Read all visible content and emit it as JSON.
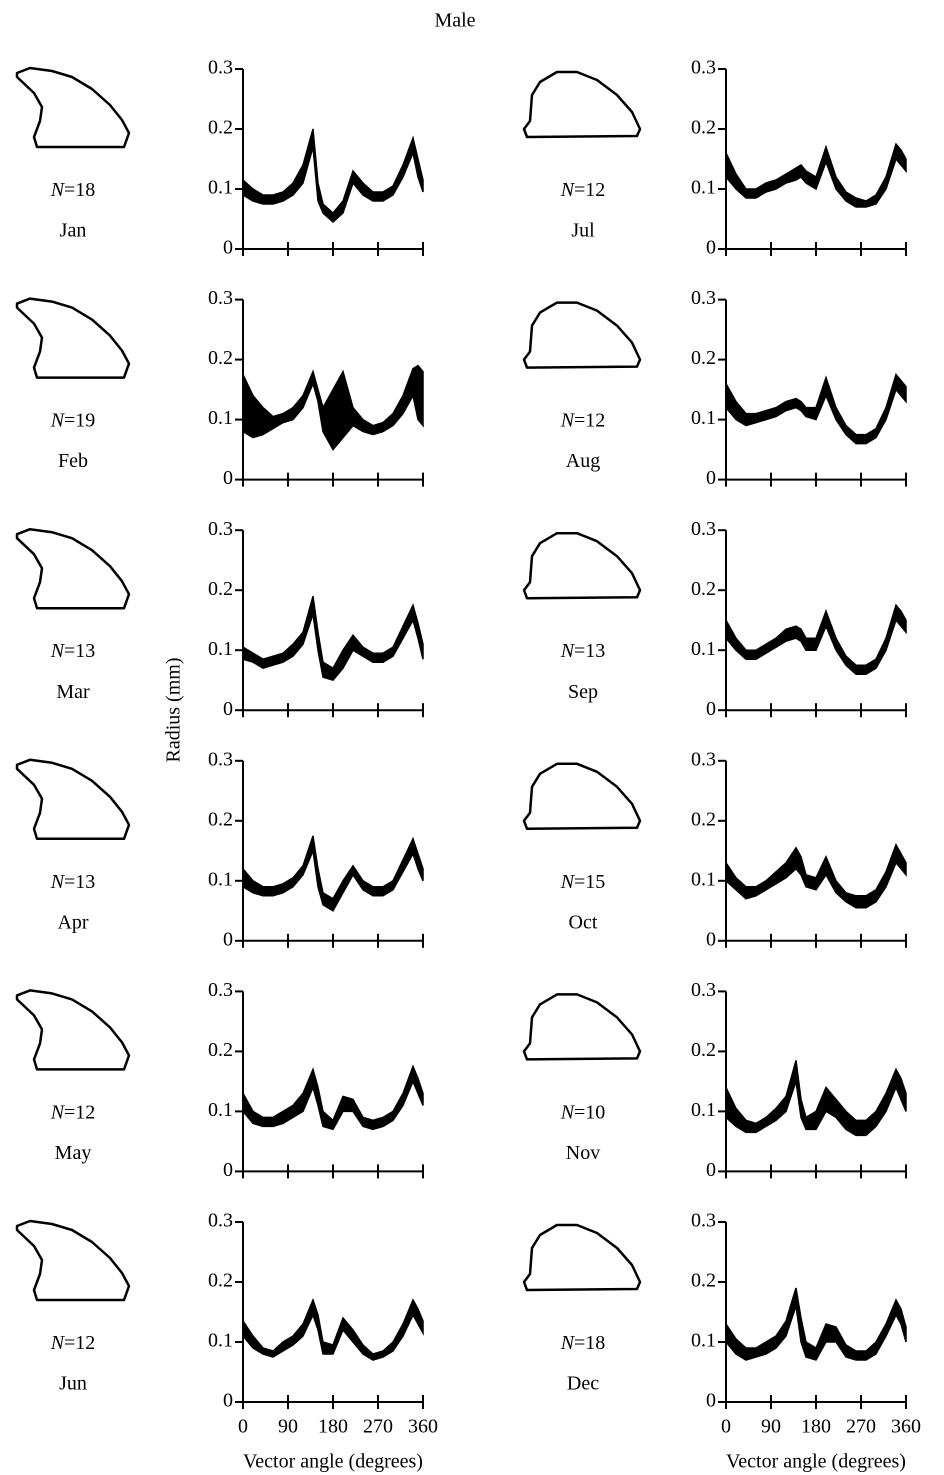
{
  "title": "Male",
  "ylabel": "Radius (mm)",
  "chart_data": [
    {
      "type": "band",
      "month": "Jan",
      "sample": "N=18",
      "color": "#000000",
      "xlim": [
        0,
        360
      ],
      "ylim": [
        0,
        0.3
      ],
      "xticks": [
        0,
        90,
        180,
        270,
        360
      ],
      "yticks": [
        0,
        0.1,
        0.2,
        0.3
      ],
      "show_xtick_labels": false,
      "x": [
        0,
        20,
        40,
        60,
        80,
        100,
        120,
        140,
        150,
        160,
        180,
        200,
        220,
        240,
        260,
        280,
        300,
        320,
        340,
        350,
        360
      ],
      "lower": [
        0.09,
        0.08,
        0.075,
        0.075,
        0.08,
        0.09,
        0.11,
        0.17,
        0.08,
        0.06,
        0.045,
        0.06,
        0.11,
        0.09,
        0.08,
        0.08,
        0.09,
        0.12,
        0.16,
        0.12,
        0.095
      ],
      "upper": [
        0.115,
        0.1,
        0.09,
        0.09,
        0.095,
        0.11,
        0.14,
        0.2,
        0.11,
        0.075,
        0.06,
        0.08,
        0.13,
        0.11,
        0.095,
        0.095,
        0.105,
        0.14,
        0.185,
        0.15,
        0.115
      ]
    },
    {
      "type": "band",
      "month": "Feb",
      "sample": "N=19",
      "color": "#000000",
      "xlim": [
        0,
        360
      ],
      "ylim": [
        0,
        0.3
      ],
      "xticks": [
        0,
        90,
        180,
        270,
        360
      ],
      "yticks": [
        0,
        0.1,
        0.2,
        0.3
      ],
      "show_xtick_labels": false,
      "x": [
        0,
        20,
        40,
        60,
        80,
        100,
        120,
        140,
        150,
        160,
        180,
        200,
        220,
        240,
        260,
        280,
        300,
        320,
        340,
        350,
        360
      ],
      "lower": [
        0.08,
        0.07,
        0.075,
        0.085,
        0.095,
        0.1,
        0.12,
        0.16,
        0.13,
        0.08,
        0.05,
        0.07,
        0.09,
        0.08,
        0.075,
        0.08,
        0.09,
        0.11,
        0.14,
        0.1,
        0.09
      ],
      "upper": [
        0.175,
        0.14,
        0.12,
        0.105,
        0.11,
        0.12,
        0.14,
        0.18,
        0.15,
        0.12,
        0.15,
        0.18,
        0.12,
        0.1,
        0.09,
        0.095,
        0.11,
        0.14,
        0.185,
        0.19,
        0.18
      ]
    },
    {
      "type": "band",
      "month": "Mar",
      "sample": "N=13",
      "color": "#000000",
      "xlim": [
        0,
        360
      ],
      "ylim": [
        0,
        0.3
      ],
      "xticks": [
        0,
        90,
        180,
        270,
        360
      ],
      "yticks": [
        0,
        0.1,
        0.2,
        0.3
      ],
      "show_xtick_labels": false,
      "x": [
        0,
        20,
        40,
        60,
        80,
        100,
        120,
        140,
        150,
        160,
        180,
        200,
        220,
        240,
        260,
        280,
        300,
        320,
        340,
        350,
        360
      ],
      "lower": [
        0.085,
        0.08,
        0.07,
        0.075,
        0.08,
        0.09,
        0.11,
        0.16,
        0.1,
        0.055,
        0.05,
        0.07,
        0.1,
        0.09,
        0.08,
        0.08,
        0.09,
        0.12,
        0.15,
        0.12,
        0.085
      ],
      "upper": [
        0.105,
        0.095,
        0.085,
        0.09,
        0.095,
        0.11,
        0.13,
        0.19,
        0.13,
        0.08,
        0.07,
        0.1,
        0.125,
        0.105,
        0.095,
        0.095,
        0.105,
        0.14,
        0.175,
        0.145,
        0.11
      ]
    },
    {
      "type": "band",
      "month": "Apr",
      "sample": "N=13",
      "color": "#000000",
      "xlim": [
        0,
        360
      ],
      "ylim": [
        0,
        0.3
      ],
      "xticks": [
        0,
        90,
        180,
        270,
        360
      ],
      "yticks": [
        0,
        0.1,
        0.2,
        0.3
      ],
      "show_xtick_labels": false,
      "x": [
        0,
        20,
        40,
        60,
        80,
        100,
        120,
        140,
        150,
        160,
        180,
        200,
        220,
        240,
        260,
        280,
        300,
        320,
        340,
        350,
        360
      ],
      "lower": [
        0.09,
        0.08,
        0.075,
        0.075,
        0.08,
        0.09,
        0.11,
        0.15,
        0.09,
        0.06,
        0.05,
        0.08,
        0.11,
        0.085,
        0.075,
        0.075,
        0.085,
        0.115,
        0.145,
        0.12,
        0.1
      ],
      "upper": [
        0.12,
        0.1,
        0.09,
        0.09,
        0.095,
        0.105,
        0.125,
        0.175,
        0.12,
        0.08,
        0.07,
        0.1,
        0.125,
        0.1,
        0.09,
        0.09,
        0.1,
        0.135,
        0.17,
        0.145,
        0.12
      ]
    },
    {
      "type": "band",
      "month": "May",
      "sample": "N=12",
      "color": "#000000",
      "xlim": [
        0,
        360
      ],
      "ylim": [
        0,
        0.3
      ],
      "xticks": [
        0,
        90,
        180,
        270,
        360
      ],
      "yticks": [
        0,
        0.1,
        0.2,
        0.3
      ],
      "show_xtick_labels": false,
      "x": [
        0,
        20,
        40,
        60,
        80,
        100,
        120,
        140,
        150,
        160,
        180,
        200,
        220,
        240,
        260,
        280,
        300,
        320,
        340,
        350,
        360
      ],
      "lower": [
        0.1,
        0.08,
        0.075,
        0.075,
        0.08,
        0.09,
        0.1,
        0.14,
        0.11,
        0.075,
        0.07,
        0.1,
        0.1,
        0.075,
        0.07,
        0.075,
        0.085,
        0.11,
        0.15,
        0.13,
        0.11
      ],
      "upper": [
        0.13,
        0.1,
        0.09,
        0.09,
        0.1,
        0.11,
        0.13,
        0.17,
        0.14,
        0.1,
        0.085,
        0.125,
        0.12,
        0.09,
        0.085,
        0.09,
        0.1,
        0.13,
        0.175,
        0.155,
        0.13
      ]
    },
    {
      "type": "band",
      "month": "Jun",
      "sample": "N=12",
      "color": "#000000",
      "xlim": [
        0,
        360
      ],
      "ylim": [
        0,
        0.3
      ],
      "xticks": [
        0,
        90,
        180,
        270,
        360
      ],
      "yticks": [
        0,
        0.1,
        0.2,
        0.3
      ],
      "show_xtick_labels": true,
      "xlabel": "Vector angle (degrees)",
      "x": [
        0,
        20,
        40,
        60,
        80,
        100,
        120,
        140,
        150,
        160,
        180,
        200,
        220,
        240,
        260,
        280,
        300,
        320,
        340,
        350,
        360
      ],
      "lower": [
        0.11,
        0.09,
        0.08,
        0.075,
        0.085,
        0.095,
        0.11,
        0.145,
        0.12,
        0.08,
        0.08,
        0.12,
        0.1,
        0.08,
        0.07,
        0.075,
        0.085,
        0.11,
        0.145,
        0.13,
        0.115
      ],
      "upper": [
        0.135,
        0.11,
        0.09,
        0.085,
        0.1,
        0.11,
        0.13,
        0.17,
        0.145,
        0.1,
        0.095,
        0.14,
        0.12,
        0.095,
        0.08,
        0.085,
        0.1,
        0.13,
        0.17,
        0.155,
        0.135
      ]
    },
    {
      "type": "band",
      "month": "Jul",
      "sample": "N=12",
      "color": "#000000",
      "xlim": [
        0,
        360
      ],
      "ylim": [
        0,
        0.3
      ],
      "xticks": [
        0,
        90,
        180,
        270,
        360
      ],
      "yticks": [
        0,
        0.1,
        0.2,
        0.3
      ],
      "show_xtick_labels": false,
      "x": [
        0,
        20,
        40,
        60,
        80,
        100,
        120,
        140,
        150,
        160,
        180,
        200,
        220,
        240,
        260,
        280,
        300,
        320,
        340,
        350,
        360
      ],
      "lower": [
        0.12,
        0.1,
        0.085,
        0.085,
        0.095,
        0.1,
        0.11,
        0.115,
        0.12,
        0.11,
        0.1,
        0.145,
        0.1,
        0.08,
        0.07,
        0.07,
        0.075,
        0.1,
        0.15,
        0.14,
        0.13
      ],
      "upper": [
        0.16,
        0.125,
        0.1,
        0.1,
        0.11,
        0.115,
        0.125,
        0.135,
        0.14,
        0.13,
        0.12,
        0.17,
        0.12,
        0.095,
        0.085,
        0.08,
        0.09,
        0.12,
        0.175,
        0.165,
        0.15
      ]
    },
    {
      "type": "band",
      "month": "Aug",
      "sample": "N=12",
      "color": "#000000",
      "xlim": [
        0,
        360
      ],
      "ylim": [
        0,
        0.3
      ],
      "xticks": [
        0,
        90,
        180,
        270,
        360
      ],
      "yticks": [
        0,
        0.1,
        0.2,
        0.3
      ],
      "show_xtick_labels": false,
      "x": [
        0,
        20,
        40,
        60,
        80,
        100,
        120,
        140,
        150,
        160,
        180,
        200,
        220,
        240,
        260,
        280,
        300,
        320,
        340,
        350,
        360
      ],
      "lower": [
        0.12,
        0.1,
        0.09,
        0.095,
        0.1,
        0.105,
        0.115,
        0.12,
        0.115,
        0.105,
        0.1,
        0.14,
        0.1,
        0.075,
        0.06,
        0.06,
        0.07,
        0.1,
        0.15,
        0.14,
        0.13
      ],
      "upper": [
        0.16,
        0.13,
        0.11,
        0.11,
        0.115,
        0.12,
        0.13,
        0.135,
        0.13,
        0.12,
        0.12,
        0.17,
        0.12,
        0.09,
        0.075,
        0.075,
        0.085,
        0.12,
        0.175,
        0.165,
        0.155
      ]
    },
    {
      "type": "band",
      "month": "Sep",
      "sample": "N=13",
      "color": "#000000",
      "xlim": [
        0,
        360
      ],
      "ylim": [
        0,
        0.3
      ],
      "xticks": [
        0,
        90,
        180,
        270,
        360
      ],
      "yticks": [
        0,
        0.1,
        0.2,
        0.3
      ],
      "show_xtick_labels": false,
      "x": [
        0,
        20,
        40,
        60,
        80,
        100,
        120,
        140,
        150,
        160,
        180,
        200,
        220,
        240,
        260,
        280,
        300,
        320,
        340,
        350,
        360
      ],
      "lower": [
        0.12,
        0.1,
        0.085,
        0.085,
        0.095,
        0.105,
        0.115,
        0.12,
        0.115,
        0.1,
        0.1,
        0.14,
        0.1,
        0.075,
        0.06,
        0.06,
        0.07,
        0.1,
        0.15,
        0.14,
        0.13
      ],
      "upper": [
        0.15,
        0.12,
        0.1,
        0.1,
        0.11,
        0.12,
        0.135,
        0.14,
        0.135,
        0.12,
        0.12,
        0.165,
        0.12,
        0.09,
        0.075,
        0.075,
        0.085,
        0.12,
        0.175,
        0.165,
        0.15
      ]
    },
    {
      "type": "band",
      "month": "Oct",
      "sample": "N=15",
      "color": "#000000",
      "xlim": [
        0,
        360
      ],
      "ylim": [
        0,
        0.3
      ],
      "xticks": [
        0,
        90,
        180,
        270,
        360
      ],
      "yticks": [
        0,
        0.1,
        0.2,
        0.3
      ],
      "show_xtick_labels": false,
      "x": [
        0,
        20,
        40,
        60,
        80,
        100,
        120,
        140,
        150,
        160,
        180,
        200,
        220,
        240,
        260,
        280,
        300,
        320,
        340,
        350,
        360
      ],
      "lower": [
        0.1,
        0.085,
        0.07,
        0.075,
        0.085,
        0.095,
        0.105,
        0.12,
        0.11,
        0.09,
        0.085,
        0.11,
        0.08,
        0.065,
        0.055,
        0.055,
        0.065,
        0.09,
        0.13,
        0.12,
        0.11
      ],
      "upper": [
        0.13,
        0.105,
        0.09,
        0.09,
        0.1,
        0.115,
        0.13,
        0.155,
        0.14,
        0.11,
        0.105,
        0.14,
        0.1,
        0.08,
        0.075,
        0.075,
        0.085,
        0.115,
        0.16,
        0.145,
        0.13
      ]
    },
    {
      "type": "band",
      "month": "Nov",
      "sample": "N=10",
      "color": "#000000",
      "xlim": [
        0,
        360
      ],
      "ylim": [
        0,
        0.3
      ],
      "xticks": [
        0,
        90,
        180,
        270,
        360
      ],
      "yticks": [
        0,
        0.1,
        0.2,
        0.3
      ],
      "show_xtick_labels": false,
      "x": [
        0,
        20,
        40,
        60,
        80,
        100,
        120,
        140,
        150,
        160,
        180,
        200,
        220,
        240,
        260,
        280,
        300,
        320,
        340,
        350,
        360
      ],
      "lower": [
        0.09,
        0.075,
        0.065,
        0.065,
        0.075,
        0.085,
        0.1,
        0.15,
        0.09,
        0.07,
        0.07,
        0.1,
        0.09,
        0.07,
        0.06,
        0.06,
        0.075,
        0.1,
        0.14,
        0.12,
        0.1
      ],
      "upper": [
        0.14,
        0.105,
        0.085,
        0.08,
        0.09,
        0.105,
        0.125,
        0.185,
        0.12,
        0.09,
        0.1,
        0.14,
        0.12,
        0.1,
        0.085,
        0.085,
        0.1,
        0.13,
        0.17,
        0.155,
        0.13
      ]
    },
    {
      "type": "band",
      "month": "Dec",
      "sample": "N=18",
      "color": "#000000",
      "xlim": [
        0,
        360
      ],
      "ylim": [
        0,
        0.3
      ],
      "xticks": [
        0,
        90,
        180,
        270,
        360
      ],
      "yticks": [
        0,
        0.1,
        0.2,
        0.3
      ],
      "show_xtick_labels": true,
      "xlabel": "Vector angle (degrees)",
      "x": [
        0,
        20,
        40,
        60,
        80,
        100,
        120,
        140,
        150,
        160,
        180,
        200,
        220,
        240,
        260,
        280,
        300,
        320,
        340,
        350,
        360
      ],
      "lower": [
        0.1,
        0.08,
        0.07,
        0.075,
        0.08,
        0.09,
        0.11,
        0.16,
        0.1,
        0.075,
        0.07,
        0.1,
        0.1,
        0.075,
        0.07,
        0.07,
        0.08,
        0.11,
        0.145,
        0.13,
        0.1
      ],
      "upper": [
        0.13,
        0.105,
        0.09,
        0.09,
        0.1,
        0.11,
        0.135,
        0.19,
        0.14,
        0.1,
        0.09,
        0.13,
        0.125,
        0.095,
        0.085,
        0.085,
        0.1,
        0.13,
        0.17,
        0.155,
        0.125
      ]
    }
  ]
}
